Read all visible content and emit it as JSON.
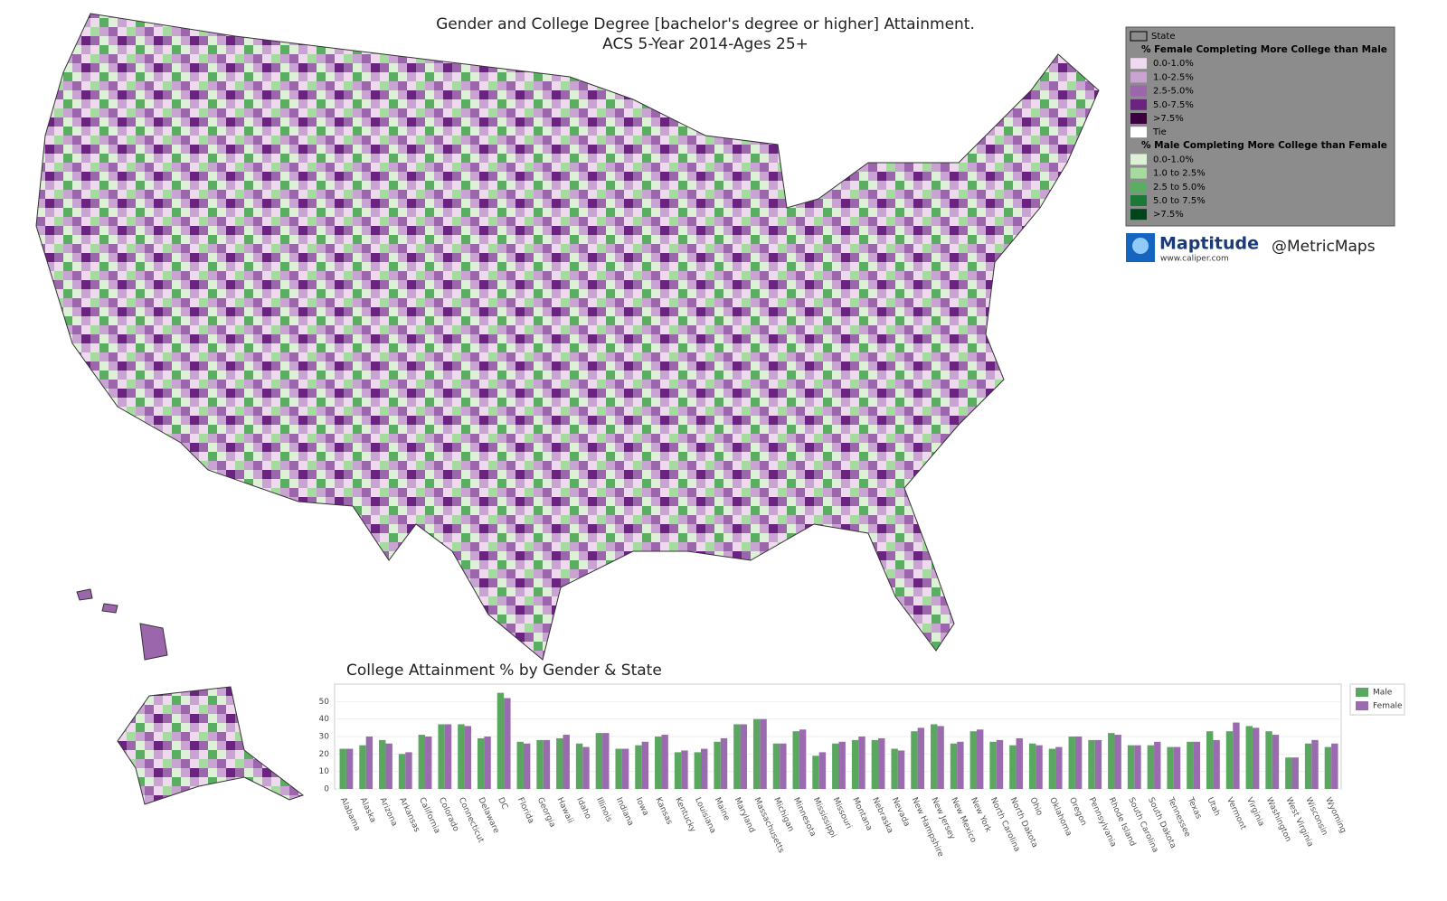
{
  "map": {
    "title": "Gender and College Degree [bachelor's degree or higher] Attainment.",
    "subtitle": "ACS 5-Year 2014-Ages 25+",
    "legend": {
      "state_label": "State",
      "groups": [
        {
          "heading": "% Female Completing More College than Male",
          "items": [
            {
              "label": "0.0-1.0%",
              "color": "#eed9ef"
            },
            {
              "label": "1.0-2.5%",
              "color": "#c9a3d2"
            },
            {
              "label": "2.5-5.0%",
              "color": "#9c66ad"
            },
            {
              "label": "5.0-7.5%",
              "color": "#6b2380"
            },
            {
              "label": ">7.5%",
              "color": "#3b0040"
            },
            {
              "label": "Tie",
              "color": "#ffffff"
            }
          ]
        },
        {
          "heading": "% Male Completing More College than Female",
          "items": [
            {
              "label": "0.0-1.0%",
              "color": "#dcf1d6"
            },
            {
              "label": "1.0 to 2.5%",
              "color": "#a6dba0"
            },
            {
              "label": "2.5 to 5.0%",
              "color": "#5aae61"
            },
            {
              "label": "5.0 to 7.5%",
              "color": "#1b7837"
            },
            {
              "label": ">7.5%",
              "color": "#00441b"
            }
          ]
        }
      ]
    }
  },
  "branding": {
    "logo": "Maptitude",
    "url": "www.caliper.com",
    "handle": "@MetricMaps"
  },
  "chart_data": {
    "type": "bar",
    "title": "College Attainment % by Gender & State",
    "categories": [
      "Alabama",
      "Alaska",
      "Arizona",
      "Arkansas",
      "California",
      "Colorado",
      "Connecticut",
      "Delaware",
      "DC",
      "Florida",
      "Georgia",
      "Hawaii",
      "Idaho",
      "Illinois",
      "Indiana",
      "Iowa",
      "Kansas",
      "Kentucky",
      "Louisiana",
      "Maine",
      "Maryland",
      "Massachusetts",
      "Michigan",
      "Minnesota",
      "Mississippi",
      "Missouri",
      "Montana",
      "Nebraska",
      "Nevada",
      "New Hampshire",
      "New Jersey",
      "New Mexico",
      "New York",
      "North Carolina",
      "North Dakota",
      "Ohio",
      "Oklahoma",
      "Oregon",
      "Pennsylvania",
      "Rhode Island",
      "South Carolina",
      "South Dakota",
      "Tennessee",
      "Texas",
      "Utah",
      "Vermont",
      "Virginia",
      "Washington",
      "West Virginia",
      "Wisconsin",
      "Wyoming"
    ],
    "series": [
      {
        "name": "Male",
        "color": "#5aa85f",
        "values": [
          23,
          25,
          28,
          20,
          31,
          37,
          37,
          29,
          55,
          27,
          28,
          29,
          26,
          32,
          23,
          25,
          30,
          21,
          21,
          27,
          37,
          40,
          26,
          33,
          19,
          26,
          28,
          28,
          23,
          33,
          37,
          26,
          33,
          27,
          25,
          26,
          23,
          30,
          28,
          32,
          25,
          25,
          24,
          27,
          33,
          33,
          36,
          33,
          18,
          26,
          24
        ]
      },
      {
        "name": "Female",
        "color": "#9b6bb0",
        "values": [
          23,
          30,
          26,
          21,
          30,
          37,
          36,
          30,
          52,
          26,
          28,
          31,
          24,
          32,
          23,
          27,
          31,
          22,
          23,
          29,
          37,
          40,
          26,
          34,
          21,
          27,
          30,
          29,
          22,
          35,
          36,
          27,
          34,
          28,
          29,
          25,
          24,
          30,
          28,
          31,
          25,
          27,
          24,
          27,
          28,
          38,
          35,
          31,
          18,
          28,
          26
        ]
      }
    ],
    "ylim": [
      0,
      60
    ],
    "yticks": [
      0,
      10,
      20,
      30,
      40,
      50
    ],
    "grid": true
  }
}
